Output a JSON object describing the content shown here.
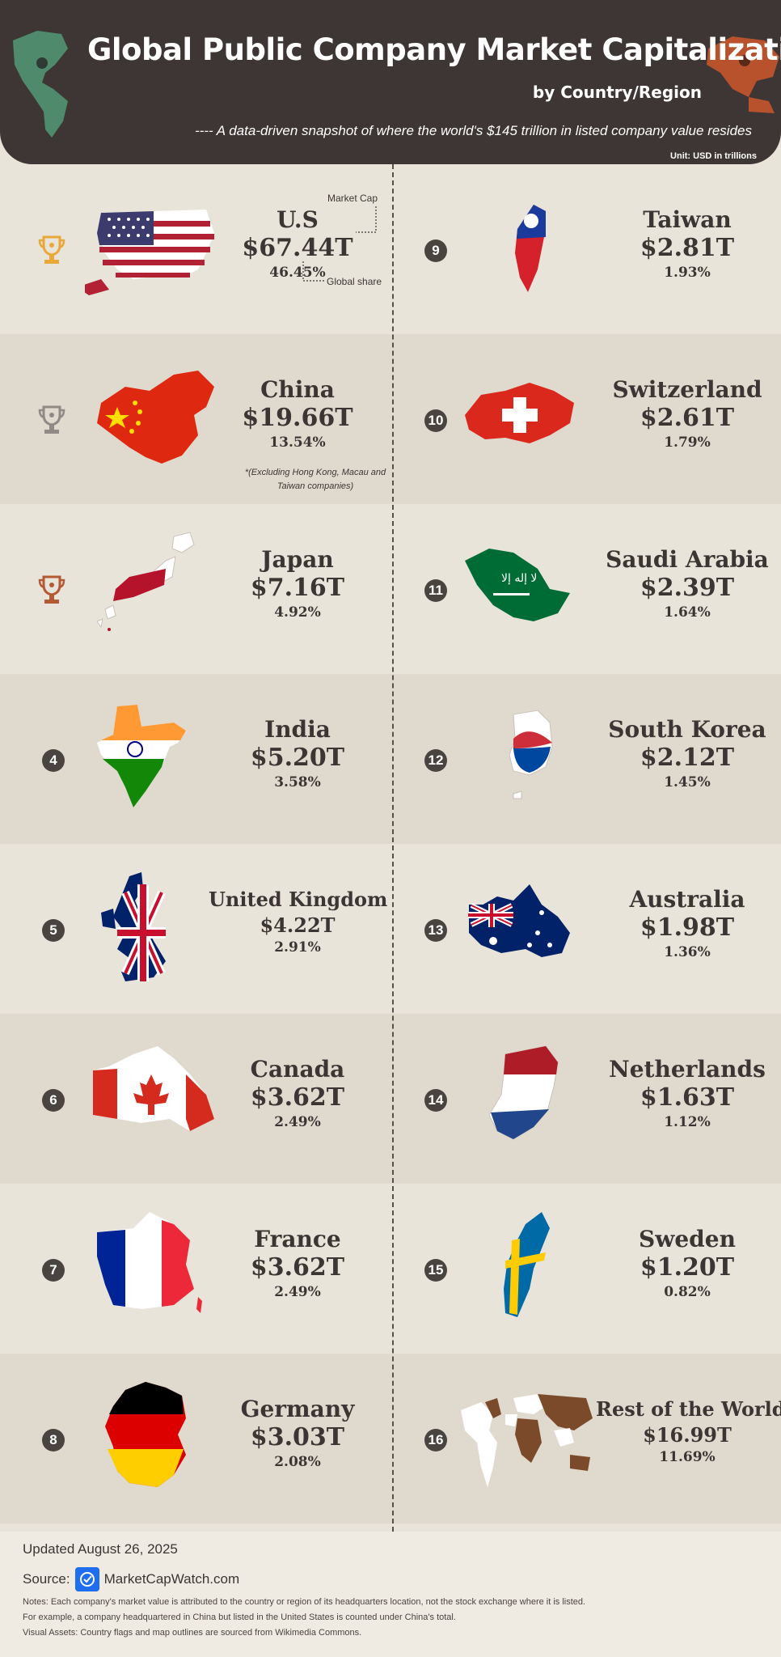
{
  "header": {
    "title": "Global Public Company Market Capitalization",
    "subtitle": "by Country/Region",
    "tagline": "---- A data-driven snapshot of where the world's $145 trillion in listed company value resides",
    "unit": "Unit: USD in trillions",
    "colors": {
      "background": "#3d3634",
      "left_globe": "#4f8a6c",
      "right_globe": "#b8522c"
    }
  },
  "annotations": {
    "market_cap": "Market Cap",
    "global_share": "Global share",
    "china_note": "*(Excluding Hong Kong, Macau and Taiwan companies)"
  },
  "ranks": [
    {
      "rank": "1",
      "name": "U.S",
      "value": "$67.44T",
      "share": "46.45%",
      "badge": "gold-trophy-icon",
      "map": "us-flag-map"
    },
    {
      "rank": "2",
      "name": "China",
      "value": "$19.66T",
      "share": "13.54%",
      "badge": "silver-trophy-icon",
      "map": "china-flag-map"
    },
    {
      "rank": "3",
      "name": "Japan",
      "value": "$7.16T",
      "share": "4.92%",
      "badge": "bronze-trophy-icon",
      "map": "japan-flag-map"
    },
    {
      "rank": "4",
      "name": "India",
      "value": "$5.20T",
      "share": "3.58%",
      "map": "india-flag-map"
    },
    {
      "rank": "5",
      "name": "United Kingdom",
      "value": "$4.22T",
      "share": "2.91%",
      "map": "uk-flag-map"
    },
    {
      "rank": "6",
      "name": "Canada",
      "value": "$3.62T",
      "share": "2.49%",
      "map": "canada-flag-map"
    },
    {
      "rank": "7",
      "name": "France",
      "value": "$3.62T",
      "share": "2.49%",
      "map": "france-flag-map"
    },
    {
      "rank": "8",
      "name": "Germany",
      "value": "$3.03T",
      "share": "2.08%",
      "map": "germany-flag-map"
    },
    {
      "rank": "9",
      "name": "Taiwan",
      "value": "$2.81T",
      "share": "1.93%",
      "map": "taiwan-flag-map"
    },
    {
      "rank": "10",
      "name": "Switzerland",
      "value": "$2.61T",
      "share": "1.79%",
      "map": "switzerland-flag-map"
    },
    {
      "rank": "11",
      "name": "Saudi Arabia",
      "value": "$2.39T",
      "share": "1.64%",
      "map": "saudi-flag-map"
    },
    {
      "rank": "12",
      "name": "South Korea",
      "value": "$2.12T",
      "share": "1.45%",
      "map": "korea-flag-map"
    },
    {
      "rank": "13",
      "name": "Australia",
      "value": "$1.98T",
      "share": "1.36%",
      "map": "australia-flag-map"
    },
    {
      "rank": "14",
      "name": "Netherlands",
      "value": "$1.63T",
      "share": "1.12%",
      "map": "netherlands-flag-map"
    },
    {
      "rank": "15",
      "name": "Sweden",
      "value": "$1.20T",
      "share": "0.82%",
      "map": "sweden-flag-map"
    },
    {
      "rank": "16",
      "name": "Rest of the World",
      "value": "$16.99T",
      "share": "11.69%",
      "map": "world-map"
    }
  ],
  "footer": {
    "updated": "Updated August 26, 2025",
    "source_label": "Source:",
    "source_name": "MarketCapWatch.com",
    "notes": [
      "Notes: Each company's market value is attributed to the country or region of its headquarters location, not the stock exchange where it is listed.",
      "For example, a company headquartered in China but listed in the United States is counted under China's total.",
      "Visual Assets: Country flags and map outlines are sourced from Wikimedia Commons."
    ]
  }
}
